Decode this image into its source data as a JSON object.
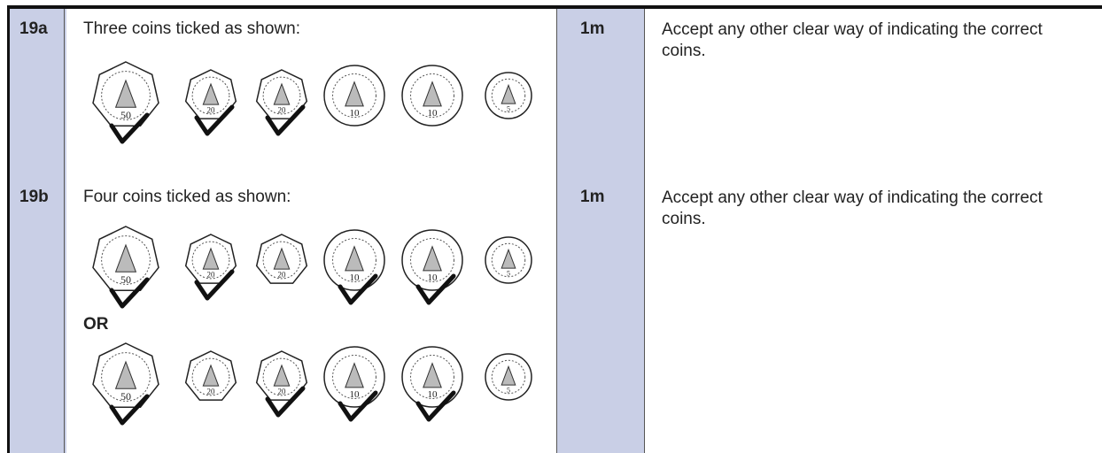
{
  "coins": [
    {
      "label": "50"
    },
    {
      "label": "20"
    },
    {
      "label": "20"
    },
    {
      "label": "10"
    },
    {
      "label": "10"
    },
    {
      "label": "5"
    }
  ],
  "rows": [
    {
      "label": "19a",
      "instruction": "Three coins ticked as shown:",
      "coin_sets": [
        {
          "ticked": [
            true,
            true,
            true,
            false,
            false,
            false
          ]
        }
      ],
      "mark": "1m",
      "note": "Accept any other clear way of indicating the correct coins."
    },
    {
      "label": "19b",
      "instruction": "Four coins ticked as shown:",
      "separator": "OR",
      "coin_sets": [
        {
          "ticked": [
            true,
            true,
            false,
            true,
            true,
            false
          ]
        },
        {
          "ticked": [
            true,
            false,
            true,
            true,
            true,
            false
          ]
        }
      ],
      "mark": "1m",
      "note": "Accept any other clear way of indicating the correct coins."
    }
  ]
}
